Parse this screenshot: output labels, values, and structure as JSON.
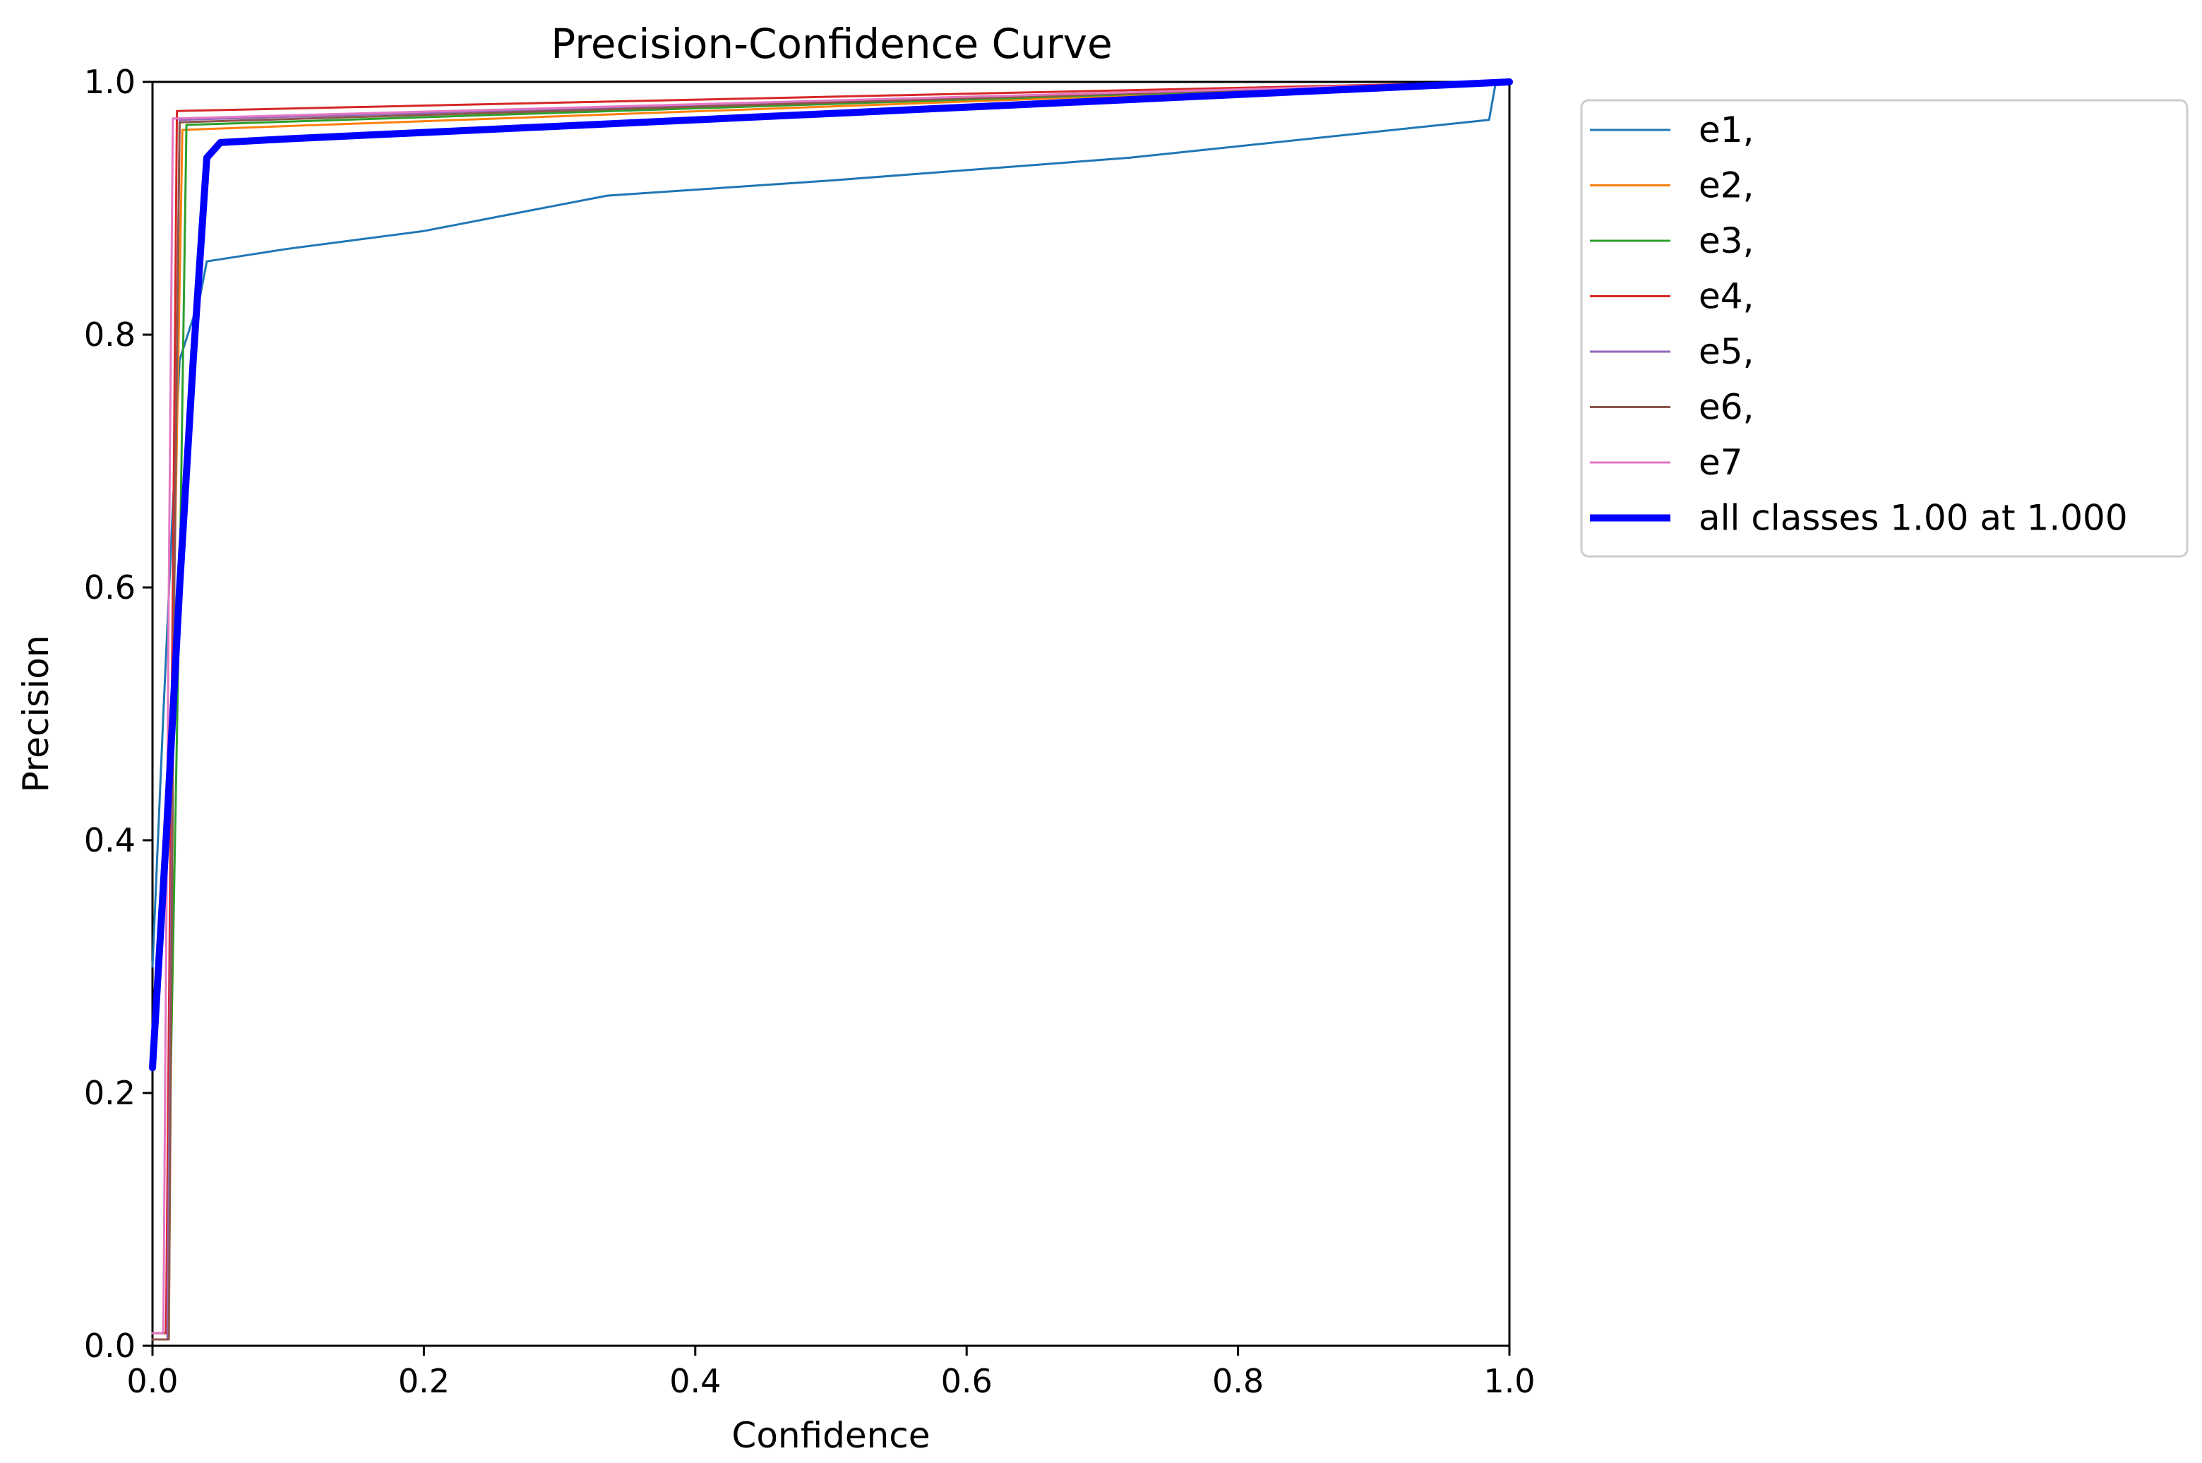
{
  "chart_data": {
    "type": "line",
    "title": "Precision-Confidence Curve",
    "xlabel": "Confidence",
    "ylabel": "Precision",
    "xlim": [
      0,
      1
    ],
    "ylim": [
      0,
      1
    ],
    "xticks": [
      "0.0",
      "0.2",
      "0.4",
      "0.6",
      "0.8",
      "1.0"
    ],
    "yticks": [
      "0.0",
      "0.2",
      "0.4",
      "0.6",
      "0.8",
      "1.0"
    ],
    "grid": false,
    "legend_position": "outside-right",
    "series": [
      {
        "name": "e1,",
        "color": "#1f77b4",
        "width": 3,
        "x": [
          0.0,
          0.008,
          0.02,
          0.035,
          0.04,
          0.1,
          0.2,
          0.335,
          0.5,
          0.72,
          0.985,
          0.99,
          1.0
        ],
        "y": [
          0.3,
          0.5,
          0.78,
          0.83,
          0.858,
          0.868,
          0.882,
          0.91,
          0.922,
          0.94,
          0.97,
          1.0,
          1.0
        ]
      },
      {
        "name": "e2,",
        "color": "#ff7f0e",
        "width": 3,
        "x": [
          0.0,
          0.012,
          0.016,
          0.022,
          1.0
        ],
        "y": [
          0.01,
          0.01,
          0.6,
          0.962,
          1.0
        ]
      },
      {
        "name": "e3,",
        "color": "#2ca02c",
        "width": 3,
        "x": [
          0.0,
          0.01,
          0.02,
          0.025,
          1.0
        ],
        "y": [
          0.01,
          0.01,
          0.6,
          0.966,
          1.0
        ]
      },
      {
        "name": "e4,",
        "color": "#d62728",
        "width": 3,
        "x": [
          0.0,
          0.01,
          0.015,
          0.018,
          1.0
        ],
        "y": [
          0.01,
          0.01,
          0.6,
          0.977,
          1.0
        ]
      },
      {
        "name": "e5,",
        "color": "#9467bd",
        "width": 3,
        "x": [
          0.0,
          0.011,
          0.016,
          0.02,
          1.0
        ],
        "y": [
          0.005,
          0.005,
          0.6,
          0.97,
          1.0
        ]
      },
      {
        "name": "e6,",
        "color": "#8c564b",
        "width": 3,
        "x": [
          0.0,
          0.012,
          0.016,
          0.02,
          1.0
        ],
        "y": [
          0.005,
          0.005,
          0.6,
          0.968,
          1.0
        ]
      },
      {
        "name": "e7",
        "color": "#e377c2",
        "width": 3,
        "x": [
          0.0,
          0.008,
          0.012,
          0.015,
          1.0
        ],
        "y": [
          0.01,
          0.01,
          0.6,
          0.971,
          1.0
        ]
      },
      {
        "name": "all classes 1.00 at 1.000",
        "color": "#0000ff",
        "width": 10,
        "x": [
          0.0,
          0.01,
          0.02,
          0.03,
          0.035,
          0.04,
          0.05,
          0.1,
          0.2,
          0.4,
          0.6,
          0.8,
          1.0
        ],
        "y": [
          0.22,
          0.4,
          0.6,
          0.78,
          0.86,
          0.94,
          0.952,
          0.955,
          0.96,
          0.97,
          0.98,
          0.99,
          1.0
        ]
      }
    ]
  }
}
